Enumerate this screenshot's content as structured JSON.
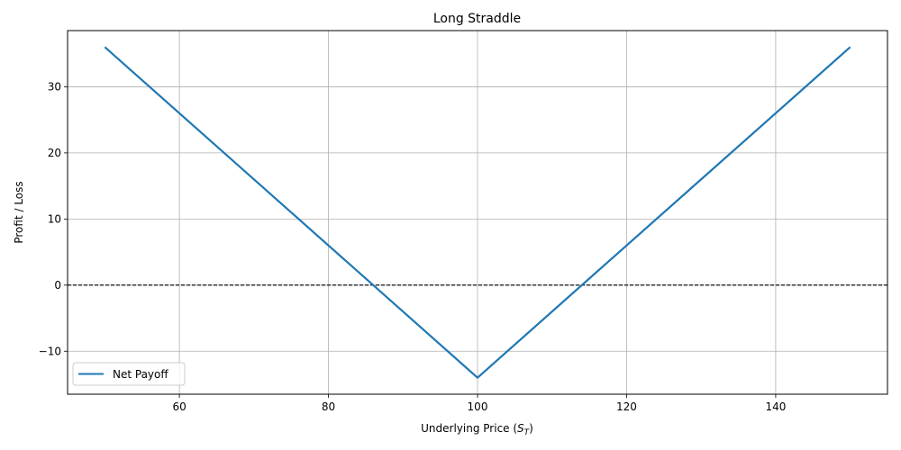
{
  "chart_data": {
    "type": "line",
    "title": "Long Straddle",
    "xlabel_prefix": "Underlying Price (",
    "xlabel_var": "S",
    "xlabel_sub": "T",
    "xlabel_suffix": ")",
    "ylabel": "Profit / Loss",
    "xlim": [
      45,
      155
    ],
    "ylim": [
      -16.5,
      38.5
    ],
    "xticks": [
      60,
      80,
      100,
      120,
      140
    ],
    "yticks": [
      -10,
      0,
      10,
      20,
      30
    ],
    "ytick_labels": [
      "−10",
      "0",
      "10",
      "20",
      "30"
    ],
    "grid": true,
    "legend_position": "lower-left",
    "series": [
      {
        "name": "Net Payoff",
        "color": "#1f77b4",
        "x": [
          50,
          100,
          150
        ],
        "y": [
          36,
          -14,
          36
        ]
      }
    ],
    "reference_line": {
      "y": 0,
      "style": "dashed",
      "color": "#000000"
    }
  }
}
